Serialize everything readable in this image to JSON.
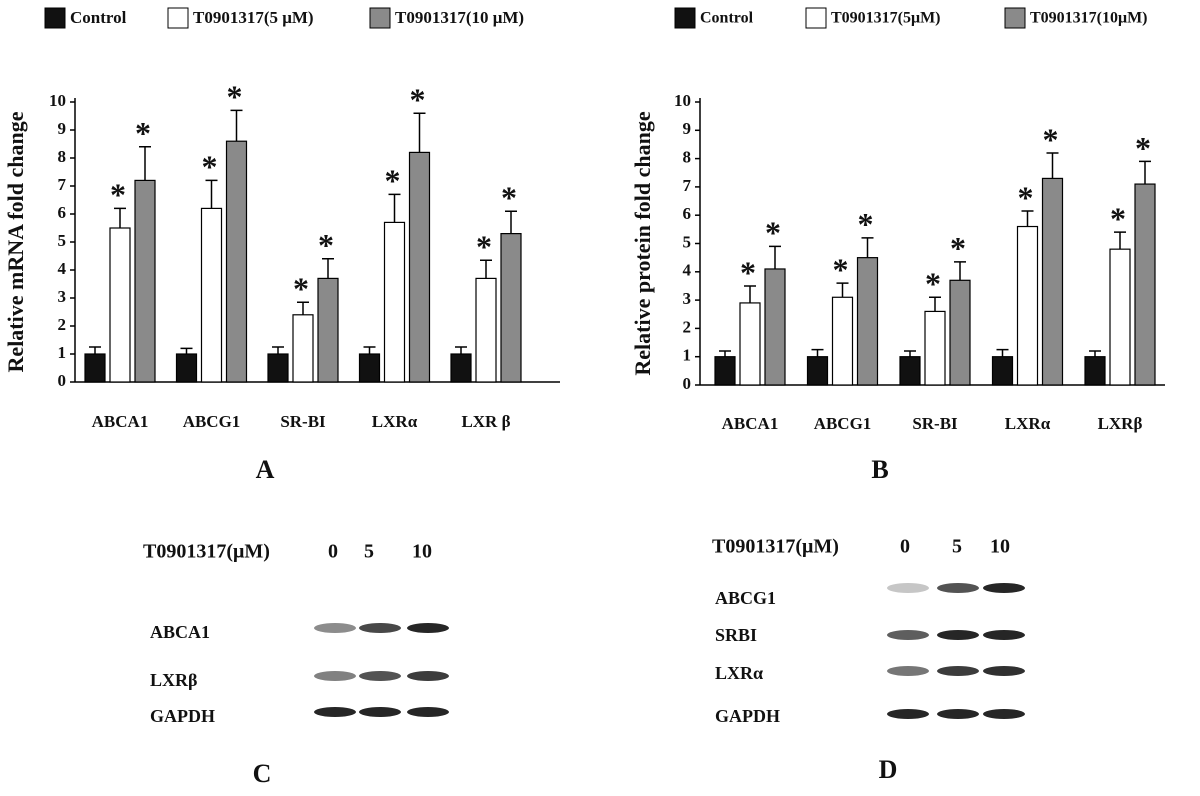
{
  "chart_data": [
    {
      "type": "bar",
      "panel": "A",
      "y_label": "Relative mRNA fold change",
      "categories": [
        "ABCA1",
        "ABCG1",
        "SR-BI",
        "LXRα",
        "LXR β"
      ],
      "series": [
        {
          "name": "Control",
          "color": "#111111",
          "values": [
            1.0,
            1.0,
            1.0,
            1.0,
            1.0
          ],
          "errors": [
            0.25,
            0.2,
            0.25,
            0.25,
            0.25
          ],
          "significant": false
        },
        {
          "name": "T0901317(5 μM)",
          "color": "#ffffff",
          "values": [
            5.5,
            6.2,
            2.4,
            5.7,
            3.7
          ],
          "errors": [
            0.7,
            1.0,
            0.45,
            1.0,
            0.65
          ],
          "significant": true
        },
        {
          "name": "T0901317(10 μM)",
          "color": "#8a8a8a",
          "values": [
            7.2,
            8.6,
            3.7,
            8.2,
            5.3
          ],
          "errors": [
            1.2,
            1.1,
            0.7,
            1.4,
            0.8
          ],
          "significant": true
        }
      ],
      "significance_marker": "*",
      "ylim": [
        0,
        10
      ],
      "yticks": [
        0,
        1,
        2,
        3,
        4,
        5,
        6,
        7,
        8,
        9,
        10
      ]
    },
    {
      "type": "bar",
      "panel": "B",
      "y_label": "Relative protein fold change",
      "categories": [
        "ABCA1",
        "ABCG1",
        "SR-BI",
        "LXRα",
        "LXRβ"
      ],
      "series": [
        {
          "name": "Control",
          "color": "#111111",
          "values": [
            1.0,
            1.0,
            1.0,
            1.0,
            1.0
          ],
          "errors": [
            0.2,
            0.25,
            0.2,
            0.25,
            0.2
          ],
          "significant": false
        },
        {
          "name": "T0901317(5μM)",
          "color": "#ffffff",
          "values": [
            2.9,
            3.1,
            2.6,
            5.6,
            4.8
          ],
          "errors": [
            0.6,
            0.5,
            0.5,
            0.55,
            0.6
          ],
          "significant": true
        },
        {
          "name": "T0901317(10μM)",
          "color": "#8a8a8a",
          "values": [
            4.1,
            4.5,
            3.7,
            7.3,
            7.1
          ],
          "errors": [
            0.8,
            0.7,
            0.65,
            0.9,
            0.8
          ],
          "significant": true
        }
      ],
      "significance_marker": "*",
      "ylim": [
        0,
        10
      ],
      "yticks": [
        0,
        1,
        2,
        3,
        4,
        5,
        6,
        7,
        8,
        9,
        10
      ]
    }
  ],
  "blots": [
    {
      "panel": "C",
      "treatment_label": "T0901317(μM)",
      "lanes": [
        0,
        5,
        10
      ],
      "rows": [
        "ABCA1",
        "LXRβ",
        "GAPDH"
      ]
    },
    {
      "panel": "D",
      "treatment_label": "T0901317(μM)",
      "lanes": [
        0,
        5,
        10
      ],
      "rows": [
        "ABCG1",
        "SRBI",
        "LXRα",
        "GAPDH"
      ]
    }
  ]
}
